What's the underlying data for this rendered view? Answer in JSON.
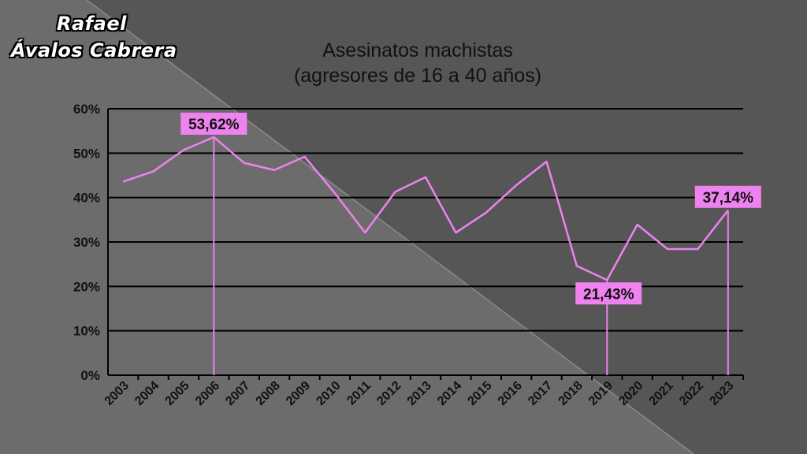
{
  "author": {
    "line1": "Rafael",
    "line2": "Ávalos Cabrera"
  },
  "chart_data": {
    "type": "line",
    "title": "Asesinatos machistas",
    "subtitle": "(agresores de 16 a 40 años)",
    "xlabel": "",
    "ylabel": "",
    "x": [
      "2003",
      "2004",
      "2005",
      "2006",
      "2007",
      "2008",
      "2009",
      "2010",
      "2011",
      "2012",
      "2013",
      "2014",
      "2015",
      "2016",
      "2017",
      "2018",
      "2019",
      "2020",
      "2021",
      "2022",
      "2023"
    ],
    "series": [
      {
        "values": [
          43.6,
          45.9,
          50.7,
          53.62,
          47.8,
          46.2,
          49.2,
          41.0,
          32.1,
          41.3,
          44.6,
          32.1,
          36.6,
          42.8,
          48.1,
          24.6,
          21.43,
          33.9,
          28.4,
          28.4,
          37.14
        ]
      }
    ],
    "ylim": [
      0,
      60
    ],
    "yticks": [
      "0%",
      "10%",
      "20%",
      "30%",
      "40%",
      "50%",
      "60%"
    ],
    "grid": true,
    "line_color": "#ee82ee",
    "highlights": [
      {
        "year": "2006",
        "label": "53,62%"
      },
      {
        "year": "2019",
        "label": "21,43%"
      },
      {
        "year": "2023",
        "label": "37,14%"
      }
    ]
  }
}
